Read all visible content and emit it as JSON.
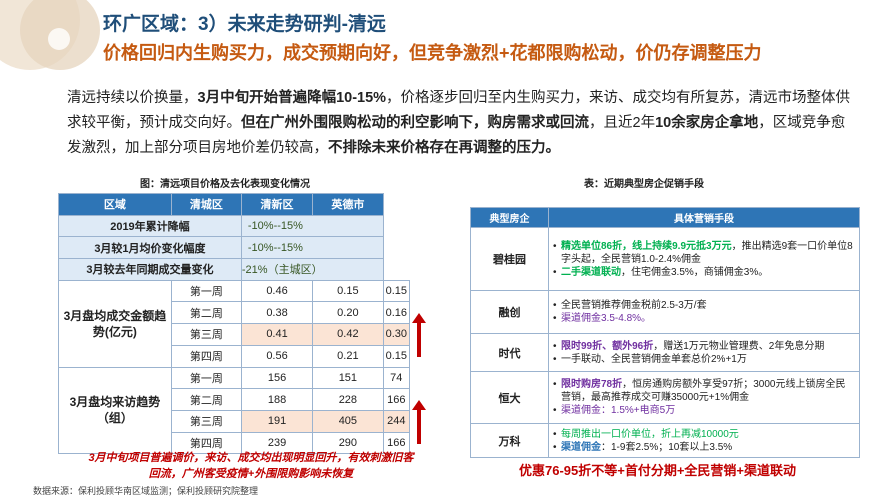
{
  "title_line1": "环广区域：3）未来走势研判-清远",
  "title_line2": "价格回归内生购买力，成交预期向好，但竞争激烈+花都限购松动，价仍存调整压力",
  "paragraph": {
    "p1": "清远持续以价换量，",
    "p2": "3月中旬开始普遍降幅10-15%",
    "p3": "，价格逐步回归至内生购买力，来访、成交均有所复苏，清远市场整体供求较平衡，预计成交向好。",
    "p4": "但在广州外围限购松动的利空影响下，购房需求或回流",
    "p5": "，且近2年",
    "p6": "10余家房企拿地",
    "p7": "，区域竞争愈发激烈，加上部分项目房地价差仍较高，",
    "p8": "不排除未来价格存在再调整的压力。"
  },
  "left_caption": "图：清远项目价格及去化表现变化情况",
  "right_caption": "表：近期典型房企促销手段",
  "table1": {
    "headers": [
      "区域",
      "清城区",
      "清新区",
      "英德市"
    ],
    "row_2019": {
      "label": "2019年累计降幅",
      "value": "-10%--15%"
    },
    "row_mar_vs_jan": {
      "label": "3月较1月均价变化幅度",
      "value": "-10%--15%"
    },
    "row_volume": {
      "label": "3月较去年同期成交量变化",
      "value": "-21%（主城区）"
    },
    "group_sales": {
      "label": "3月盘均成交金额趋势(亿元)"
    },
    "sales_rows": [
      {
        "week": "第一周",
        "a": "0.46",
        "b": "0.15",
        "c": "0.15"
      },
      {
        "week": "第二周",
        "a": "0.38",
        "b": "0.20",
        "c": "0.16"
      },
      {
        "week": "第三周",
        "a": "0.41",
        "b": "0.42",
        "c": "0.30"
      },
      {
        "week": "第四周",
        "a": "0.56",
        "b": "0.21",
        "c": "0.15"
      }
    ],
    "group_visits": {
      "label": "3月盘均来访趋势（组）"
    },
    "visit_rows": [
      {
        "week": "第一周",
        "a": "156",
        "b": "151",
        "c": "74"
      },
      {
        "week": "第二周",
        "a": "188",
        "b": "228",
        "c": "166"
      },
      {
        "week": "第三周",
        "a": "191",
        "b": "405",
        "c": "244"
      },
      {
        "week": "第四周",
        "a": "239",
        "b": "290",
        "c": "166"
      }
    ]
  },
  "table2": {
    "headers": [
      "典型房企",
      "具体营销手段"
    ],
    "rows": [
      {
        "company": "碧桂园",
        "items": [
          {
            "a": "精选单位86折，线上持续9.9元抵3万元",
            "b": "，推出精选9套一口价单位8字头起，全民营销1.0-2.4%佣金"
          },
          {
            "a": "二手渠道联动",
            "b": "，住宅佣金3.5%，商铺佣金3%。"
          }
        ]
      },
      {
        "company": "融创",
        "items": [
          {
            "a": "",
            "b": "全民营销推荐佣金税前2.5-3万/套"
          },
          {
            "a": "渠道佣金",
            "b": "3.5-4.8%。"
          }
        ]
      },
      {
        "company": "时代",
        "items": [
          {
            "a": "限时99折、额外96折",
            "b": "，赠送1万元物业管理费、2年免息分期"
          },
          {
            "a": "",
            "b": "一手联动、全民营销佣金单套总价2%+1万"
          }
        ]
      },
      {
        "company": "恒大",
        "items": [
          {
            "a": "限时购房78折",
            "b": "，恒房通购房额外享受97折；3000元线上锁房全民营销，最高推荐成交可赚35000元+1%佣金"
          },
          {
            "a": "渠道佣金",
            "b": "：1.5%+电商5万"
          }
        ]
      },
      {
        "company": "万科",
        "items": [
          {
            "a": "",
            "b": "每周推出一口价单位，折上再减10000元"
          },
          {
            "a": "渠道佣金",
            "b": "：1-9套2.5%；10套以上3.5%"
          }
        ]
      }
    ]
  },
  "note": "3月中旬项目普遍调价，来访、成交均出现明显回升，有效刺激旧客回流，广州客受疫情+外围限购影响未恢复",
  "promo": "优惠76-95折不等+首付分期+全民营销+渠道联动",
  "source": "数据来源：保利投顾华南区域监测；保利投顾研究院整理",
  "colors": {
    "header_blue": "#2e75b6",
    "title_blue": "#1f4e79",
    "title_orange": "#c55a11",
    "highlight": "#fbe4d5",
    "alert_red": "#c00000"
  }
}
